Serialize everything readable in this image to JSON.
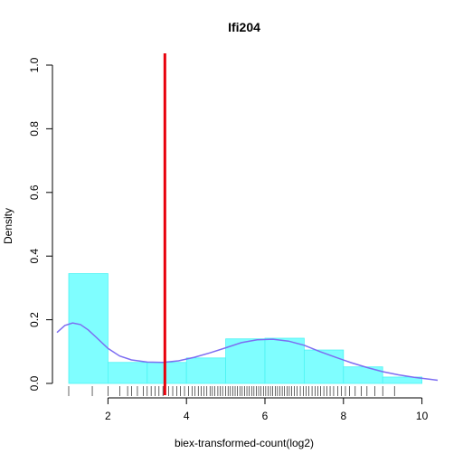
{
  "chart_data": {
    "type": "histogram",
    "title": "Ifi204",
    "xlabel": "biex-transformed-count(log2)",
    "ylabel": "Density",
    "xlim": [
      0.7,
      10.4
    ],
    "ylim": [
      0,
      1.0
    ],
    "x_ticks": [
      2,
      4,
      6,
      8,
      10
    ],
    "y_ticks": [
      0.0,
      0.2,
      0.4,
      0.6,
      0.8,
      1.0
    ],
    "y_tick_labels": [
      "0.0",
      "0.2",
      "0.4",
      "0.6",
      "0.8",
      "1.0"
    ],
    "bins": [
      {
        "x0": 1,
        "x1": 2,
        "density": 0.345
      },
      {
        "x0": 2,
        "x1": 3,
        "density": 0.066
      },
      {
        "x0": 3,
        "x1": 4,
        "density": 0.066
      },
      {
        "x0": 4,
        "x1": 5,
        "density": 0.08
      },
      {
        "x0": 5,
        "x1": 6,
        "density": 0.14
      },
      {
        "x0": 6,
        "x1": 7,
        "density": 0.142
      },
      {
        "x0": 7,
        "x1": 8,
        "density": 0.105
      },
      {
        "x0": 8,
        "x1": 9,
        "density": 0.052
      },
      {
        "x0": 9,
        "x1": 10,
        "density": 0.02
      }
    ],
    "density_curve": {
      "x": [
        0.7,
        0.9,
        1.1,
        1.3,
        1.5,
        1.7,
        2.0,
        2.3,
        2.6,
        3.0,
        3.4,
        3.8,
        4.2,
        4.6,
        5.0,
        5.4,
        5.8,
        6.2,
        6.6,
        7.0,
        7.4,
        7.8,
        8.2,
        8.6,
        9.0,
        9.4,
        9.8,
        10.2,
        10.4
      ],
      "y": [
        0.16,
        0.182,
        0.19,
        0.185,
        0.168,
        0.145,
        0.11,
        0.086,
        0.074,
        0.067,
        0.066,
        0.071,
        0.082,
        0.096,
        0.112,
        0.128,
        0.137,
        0.139,
        0.133,
        0.12,
        0.1,
        0.082,
        0.065,
        0.05,
        0.037,
        0.027,
        0.019,
        0.013,
        0.01
      ]
    },
    "rug": [
      1.0,
      1.6,
      2.0,
      2.3,
      2.5,
      2.6,
      2.75,
      2.9,
      3.0,
      3.1,
      3.2,
      3.3,
      3.4,
      3.55,
      3.65,
      3.75,
      3.85,
      3.95,
      4.05,
      4.15,
      4.22,
      4.3,
      4.38,
      4.45,
      4.52,
      4.6,
      4.66,
      4.72,
      4.8,
      4.86,
      4.92,
      5.0,
      5.06,
      5.12,
      5.18,
      5.24,
      5.3,
      5.36,
      5.42,
      5.48,
      5.54,
      5.6,
      5.66,
      5.72,
      5.78,
      5.84,
      5.9,
      5.96,
      6.02,
      6.08,
      6.14,
      6.2,
      6.26,
      6.32,
      6.38,
      6.44,
      6.5,
      6.56,
      6.62,
      6.68,
      6.75,
      6.82,
      6.9,
      6.98,
      7.05,
      7.12,
      7.2,
      7.28,
      7.35,
      7.42,
      7.5,
      7.58,
      7.66,
      7.75,
      7.85,
      7.95,
      8.05,
      8.15,
      8.3,
      8.45,
      8.6,
      8.8,
      9.0,
      9.3
    ],
    "threshold_line": {
      "x": 3.45,
      "color": "#e8000b"
    },
    "colors": {
      "histogram_fill": "#7ffeff",
      "histogram_border": "#4cf3f3",
      "density_line": "#7d6df2",
      "axis": "#000000"
    },
    "grid": false,
    "legend": "none"
  }
}
